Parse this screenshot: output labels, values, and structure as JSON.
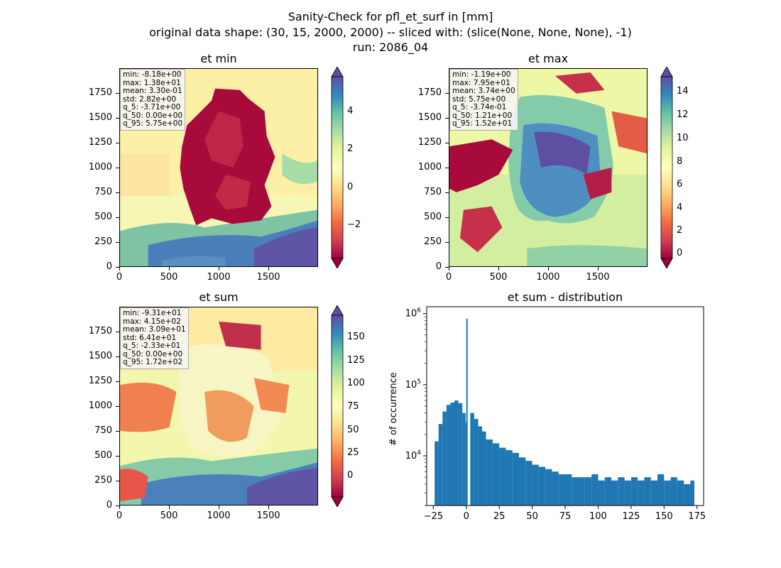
{
  "figure": {
    "title_line1": "Sanity-Check for pfl_et_surf in [mm]",
    "title_line2": "original data shape: (30, 15, 2000, 2000) -- sliced with: (slice(None, None, None), -1)",
    "title_line3": "run: 2086_04"
  },
  "panels": [
    {
      "title": "et min",
      "stats": [
        "min: -8.18e+00",
        "max: 1.38e+01",
        "mean: 3.30e-01",
        "std: 2.82e+00",
        "q_5: -3.71e+00",
        "q_50: 0.00e+00",
        "q_95: 5.75e+00"
      ],
      "xticks": [
        "0",
        "500",
        "1000",
        "1500"
      ],
      "yticks": [
        "0",
        "250",
        "500",
        "750",
        "1000",
        "1250",
        "1500",
        "1750"
      ],
      "cbar_ticks": [
        "4",
        "2",
        "0",
        "−2"
      ]
    },
    {
      "title": "et max",
      "stats": [
        "min: -1.19e+00",
        "max: 7.95e+01",
        "mean: 3.74e+00",
        "std: 5.75e+00",
        "q_5: -3.74e-01",
        "q_50: 1.21e+00",
        "q_95: 1.52e+01"
      ],
      "xticks": [
        "0",
        "500",
        "1000",
        "1500"
      ],
      "yticks": [
        "0",
        "250",
        "500",
        "750",
        "1000",
        "1250",
        "1500",
        "1750"
      ],
      "cbar_ticks": [
        "14",
        "12",
        "10",
        "8",
        "6",
        "4",
        "2",
        "0"
      ]
    },
    {
      "title": "et sum",
      "stats": [
        "min: -9.31e+01",
        "max: 4.15e+02",
        "mean: 3.09e+01",
        "std: 6.41e+01",
        "q_5: -2.33e+01",
        "q_50: 0.00e+00",
        "q_95: 1.72e+02"
      ],
      "xticks": [
        "0",
        "500",
        "1000",
        "1500"
      ],
      "yticks": [
        "0",
        "250",
        "500",
        "750",
        "1000",
        "1250",
        "1500",
        "1750"
      ],
      "cbar_ticks": [
        "150",
        "125",
        "100",
        "75",
        "50",
        "25",
        "0"
      ]
    }
  ],
  "chart_data": [
    {
      "type": "heatmap",
      "title": "et min",
      "xlim": [
        0,
        2000
      ],
      "ylim": [
        0,
        2000
      ],
      "colormap": "Spectral",
      "clim": [
        -3.71,
        5.75
      ]
    },
    {
      "type": "heatmap",
      "title": "et max",
      "xlim": [
        0,
        2000
      ],
      "ylim": [
        0,
        2000
      ],
      "colormap": "Spectral",
      "clim": [
        -0.374,
        15.2
      ]
    },
    {
      "type": "heatmap",
      "title": "et sum",
      "xlim": [
        0,
        2000
      ],
      "ylim": [
        0,
        2000
      ],
      "colormap": "Spectral",
      "clim": [
        -23.3,
        172
      ]
    },
    {
      "type": "bar",
      "title": "et sum - distribution",
      "ylabel": "# of occurrence",
      "yscale": "log",
      "xlim": [
        -30,
        180
      ],
      "xticks": [
        "−25",
        "0",
        "25",
        "50",
        "75",
        "100",
        "125",
        "150",
        "175"
      ],
      "yticks": [
        "10^4",
        "10^5",
        "10^6"
      ],
      "color": "#1f77b4",
      "bins_x": [
        -24,
        -21,
        -18,
        -15,
        -12,
        -9,
        -6,
        -3,
        -0.5,
        0,
        3,
        6,
        9,
        12,
        15,
        20,
        25,
        30,
        35,
        40,
        45,
        50,
        55,
        60,
        65,
        70,
        75,
        80,
        85,
        90,
        95,
        100,
        105,
        110,
        115,
        120,
        125,
        130,
        135,
        140,
        145,
        150,
        155,
        160,
        165,
        170
      ],
      "values": [
        16000,
        28000,
        42000,
        52000,
        56000,
        60000,
        55000,
        40000,
        30000,
        850000,
        40000,
        33000,
        26000,
        22000,
        17000,
        15000,
        13000,
        12000,
        11000,
        9500,
        8500,
        7500,
        7000,
        6500,
        6000,
        5500,
        5500,
        5000,
        5000,
        5000,
        5500,
        4500,
        5000,
        4500,
        5000,
        4500,
        5000,
        4500,
        5000,
        4500,
        5500,
        4500,
        5000,
        4500,
        4000,
        4500
      ]
    }
  ]
}
